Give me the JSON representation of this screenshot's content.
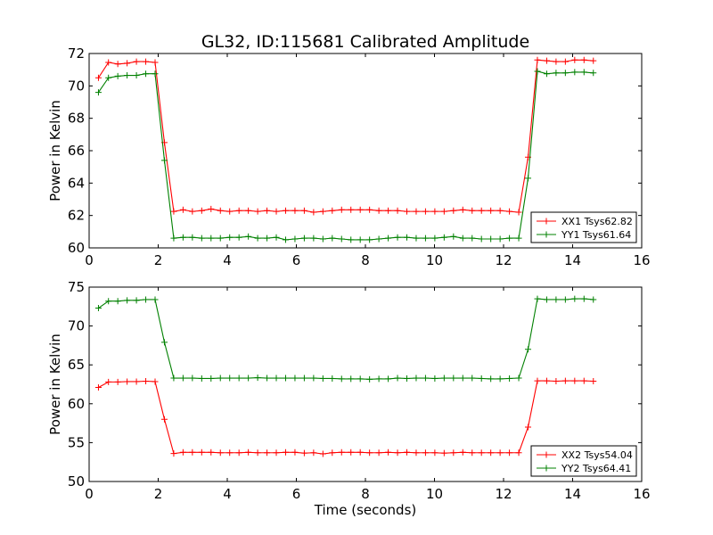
{
  "figure": {
    "title": "GL32, ID:115681 Calibrated Amplitude"
  },
  "colors": {
    "xx": "#ff0000",
    "yy": "#008000",
    "axis": "#000000",
    "background": "#ffffff"
  },
  "chart_data": [
    {
      "type": "line",
      "title": "GL32, ID:115681 Calibrated Amplitude",
      "xlabel": "",
      "ylabel": "Power in Kelvin",
      "xlim": [
        0,
        16
      ],
      "ylim": [
        60,
        72
      ],
      "xticks": [
        0,
        2,
        4,
        6,
        8,
        10,
        12,
        14,
        16
      ],
      "yticks": [
        60,
        62,
        64,
        66,
        68,
        70,
        72
      ],
      "grid": false,
      "legend_position": "lower-right",
      "marker": "plus",
      "series": [
        {
          "name": "XX1 Tsys62.82",
          "color": "#ff0000",
          "x": [
            0.27,
            0.56,
            0.83,
            1.1,
            1.37,
            1.64,
            1.91,
            2.18,
            2.45,
            2.72,
            2.99,
            3.26,
            3.53,
            3.8,
            4.07,
            4.34,
            4.61,
            4.88,
            5.15,
            5.42,
            5.69,
            5.96,
            6.23,
            6.5,
            6.77,
            7.04,
            7.31,
            7.58,
            7.85,
            8.12,
            8.39,
            8.66,
            8.93,
            9.2,
            9.47,
            9.74,
            10.01,
            10.28,
            10.55,
            10.82,
            11.09,
            11.36,
            11.63,
            11.9,
            12.17,
            12.44,
            12.71,
            12.98,
            13.25,
            13.52,
            13.79,
            14.06,
            14.33,
            14.6
          ],
          "y": [
            70.5,
            71.45,
            71.35,
            71.4,
            71.5,
            71.5,
            71.45,
            66.5,
            62.25,
            62.35,
            62.25,
            62.3,
            62.4,
            62.3,
            62.25,
            62.3,
            62.3,
            62.25,
            62.3,
            62.25,
            62.3,
            62.3,
            62.3,
            62.2,
            62.25,
            62.3,
            62.35,
            62.35,
            62.35,
            62.35,
            62.3,
            62.3,
            62.3,
            62.25,
            62.25,
            62.25,
            62.25,
            62.25,
            62.3,
            62.35,
            62.3,
            62.3,
            62.3,
            62.3,
            62.25,
            62.2,
            65.6,
            71.6,
            71.55,
            71.5,
            71.5,
            71.6,
            71.6,
            71.55
          ]
        },
        {
          "name": "YY1 Tsys61.64",
          "color": "#008000",
          "x": [
            0.27,
            0.56,
            0.83,
            1.1,
            1.37,
            1.64,
            1.91,
            2.18,
            2.45,
            2.72,
            2.99,
            3.26,
            3.53,
            3.8,
            4.07,
            4.34,
            4.61,
            4.88,
            5.15,
            5.42,
            5.69,
            5.96,
            6.23,
            6.5,
            6.77,
            7.04,
            7.31,
            7.58,
            7.85,
            8.12,
            8.39,
            8.66,
            8.93,
            9.2,
            9.47,
            9.74,
            10.01,
            10.28,
            10.55,
            10.82,
            11.09,
            11.36,
            11.63,
            11.9,
            12.17,
            12.44,
            12.71,
            12.98,
            13.25,
            13.52,
            13.79,
            14.06,
            14.33,
            14.6
          ],
          "y": [
            69.6,
            70.5,
            70.6,
            70.65,
            70.65,
            70.75,
            70.75,
            65.4,
            60.6,
            60.65,
            60.65,
            60.6,
            60.6,
            60.6,
            60.65,
            60.65,
            60.7,
            60.6,
            60.6,
            60.65,
            60.5,
            60.55,
            60.6,
            60.6,
            60.55,
            60.6,
            60.55,
            60.5,
            60.5,
            60.5,
            60.55,
            60.6,
            60.65,
            60.65,
            60.6,
            60.6,
            60.6,
            60.65,
            60.7,
            60.6,
            60.6,
            60.55,
            60.55,
            60.55,
            60.6,
            60.6,
            64.3,
            70.9,
            70.75,
            70.8,
            70.8,
            70.85,
            70.85,
            70.8
          ]
        }
      ]
    },
    {
      "type": "line",
      "title": "",
      "xlabel": "Time (seconds)",
      "ylabel": "Power in Kelvin",
      "xlim": [
        0,
        16
      ],
      "ylim": [
        50,
        75
      ],
      "xticks": [
        0,
        2,
        4,
        6,
        8,
        10,
        12,
        14,
        16
      ],
      "yticks": [
        50,
        55,
        60,
        65,
        70,
        75
      ],
      "grid": false,
      "legend_position": "lower-right",
      "marker": "plus",
      "series": [
        {
          "name": "XX2 Tsys54.04",
          "color": "#ff0000",
          "x": [
            0.27,
            0.56,
            0.83,
            1.1,
            1.37,
            1.64,
            1.91,
            2.18,
            2.45,
            2.72,
            2.99,
            3.26,
            3.53,
            3.8,
            4.07,
            4.34,
            4.61,
            4.88,
            5.15,
            5.42,
            5.69,
            5.96,
            6.23,
            6.5,
            6.77,
            7.04,
            7.31,
            7.58,
            7.85,
            8.12,
            8.39,
            8.66,
            8.93,
            9.2,
            9.47,
            9.74,
            10.01,
            10.28,
            10.55,
            10.82,
            11.09,
            11.36,
            11.63,
            11.9,
            12.17,
            12.44,
            12.71,
            12.98,
            13.25,
            13.52,
            13.79,
            14.06,
            14.33,
            14.6
          ],
          "y": [
            62.1,
            62.8,
            62.8,
            62.85,
            62.85,
            62.9,
            62.85,
            58.0,
            53.6,
            53.75,
            53.75,
            53.75,
            53.75,
            53.7,
            53.7,
            53.7,
            53.75,
            53.7,
            53.7,
            53.7,
            53.75,
            53.75,
            53.65,
            53.7,
            53.55,
            53.7,
            53.75,
            53.75,
            53.75,
            53.7,
            53.7,
            53.75,
            53.7,
            53.75,
            53.7,
            53.7,
            53.7,
            53.65,
            53.7,
            53.75,
            53.7,
            53.7,
            53.7,
            53.7,
            53.7,
            53.7,
            57.0,
            62.95,
            62.95,
            62.9,
            62.95,
            62.95,
            62.95,
            62.9
          ]
        },
        {
          "name": "YY2 Tsys64.41",
          "color": "#008000",
          "x": [
            0.27,
            0.56,
            0.83,
            1.1,
            1.37,
            1.64,
            1.91,
            2.18,
            2.45,
            2.72,
            2.99,
            3.26,
            3.53,
            3.8,
            4.07,
            4.34,
            4.61,
            4.88,
            5.15,
            5.42,
            5.69,
            5.96,
            6.23,
            6.5,
            6.77,
            7.04,
            7.31,
            7.58,
            7.85,
            8.12,
            8.39,
            8.66,
            8.93,
            9.2,
            9.47,
            9.74,
            10.01,
            10.28,
            10.55,
            10.82,
            11.09,
            11.36,
            11.63,
            11.9,
            12.17,
            12.44,
            12.71,
            12.98,
            13.25,
            13.52,
            13.79,
            14.06,
            14.33,
            14.6
          ],
          "y": [
            72.3,
            73.2,
            73.2,
            73.3,
            73.3,
            73.4,
            73.4,
            67.9,
            63.3,
            63.3,
            63.3,
            63.25,
            63.25,
            63.3,
            63.3,
            63.3,
            63.3,
            63.35,
            63.3,
            63.3,
            63.3,
            63.3,
            63.3,
            63.3,
            63.25,
            63.25,
            63.2,
            63.2,
            63.2,
            63.15,
            63.2,
            63.2,
            63.3,
            63.25,
            63.3,
            63.3,
            63.25,
            63.3,
            63.3,
            63.3,
            63.3,
            63.25,
            63.2,
            63.2,
            63.25,
            63.3,
            67.0,
            73.5,
            73.4,
            73.4,
            73.4,
            73.5,
            73.5,
            73.4
          ]
        }
      ]
    }
  ]
}
